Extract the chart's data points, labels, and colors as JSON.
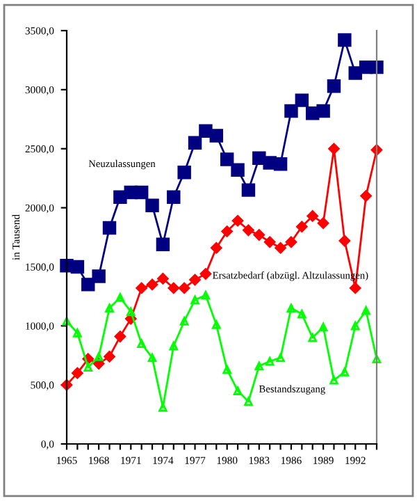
{
  "chart_data": {
    "type": "line",
    "ylabel": "in Tausend",
    "x": [
      1965,
      1966,
      1967,
      1968,
      1969,
      1970,
      1971,
      1972,
      1973,
      1974,
      1975,
      1976,
      1977,
      1978,
      1979,
      1980,
      1981,
      1982,
      1983,
      1984,
      1985,
      1986,
      1987,
      1988,
      1989,
      1990,
      1991,
      1992,
      1993,
      1994
    ],
    "series": [
      {
        "name": "Neuzulassungen",
        "color": "#000080",
        "marker": "square",
        "values": [
          1510,
          1500,
          1350,
          1420,
          1830,
          2090,
          2130,
          2130,
          2020,
          1690,
          2090,
          2300,
          2550,
          2650,
          2610,
          2410,
          2320,
          2150,
          2420,
          2380,
          2370,
          2820,
          2910,
          2800,
          2820,
          3030,
          3420,
          3140,
          3190,
          3190
        ]
      },
      {
        "name": "Ersatzbedarf (abzügl. Altzulassungen)",
        "color": "#ff0000",
        "marker": "diamond",
        "values": [
          500,
          600,
          720,
          680,
          740,
          910,
          1060,
          1320,
          1350,
          1400,
          1320,
          1320,
          1390,
          1440,
          1660,
          1800,
          1890,
          1810,
          1770,
          1710,
          1660,
          1710,
          1840,
          1930,
          1870,
          2500,
          1720,
          1320,
          2100,
          2490
        ]
      },
      {
        "name": "Bestandszugang",
        "color": "#00ff00",
        "marker": "triangle",
        "values": [
          1040,
          940,
          650,
          740,
          1150,
          1240,
          1120,
          850,
          730,
          310,
          830,
          1040,
          1220,
          1260,
          1010,
          630,
          450,
          360,
          660,
          700,
          730,
          1150,
          1100,
          900,
          990,
          540,
          610,
          1000,
          1130,
          720
        ]
      }
    ],
    "xlim": [
      1965,
      1994
    ],
    "ylim": [
      0,
      3500
    ],
    "xticks": [
      1965,
      {
        "value": 1966,
        "label": null
      },
      {
        "value": 1967,
        "label": null
      },
      1968,
      {
        "value": 1969,
        "label": null
      },
      {
        "value": 1970,
        "label": null
      },
      1971,
      {
        "value": 1972,
        "label": null
      },
      {
        "value": 1973,
        "label": null
      },
      1974,
      {
        "value": 1975,
        "label": null
      },
      {
        "value": 1976,
        "label": null
      },
      1977,
      {
        "value": 1978,
        "label": null
      },
      {
        "value": 1979,
        "label": null
      },
      1980,
      {
        "value": 1981,
        "label": null
      },
      {
        "value": 1982,
        "label": null
      },
      1983,
      {
        "value": 1984,
        "label": null
      },
      {
        "value": 1985,
        "label": null
      },
      1986,
      {
        "value": 1987,
        "label": null
      },
      {
        "value": 1988,
        "label": null
      },
      1989,
      {
        "value": 1990,
        "label": null
      },
      {
        "value": 1991,
        "label": null
      },
      1992,
      {
        "value": 1993,
        "label": null
      },
      {
        "value": 1994,
        "label": null
      }
    ],
    "yticks": [
      {
        "value": 0,
        "label": "0,0"
      },
      {
        "value": 500,
        "label": "500,0"
      },
      {
        "value": 1000,
        "label": "1000,0"
      },
      {
        "value": 1500,
        "label": "1500,0"
      },
      {
        "value": 2000,
        "label": "2000,0"
      },
      {
        "value": 2500,
        "label": "2500,0"
      },
      {
        "value": 3000,
        "label": "3000,0"
      },
      {
        "value": 3500,
        "label": "3500,0"
      }
    ],
    "grid": false,
    "legend": false,
    "line_style": "solid"
  }
}
